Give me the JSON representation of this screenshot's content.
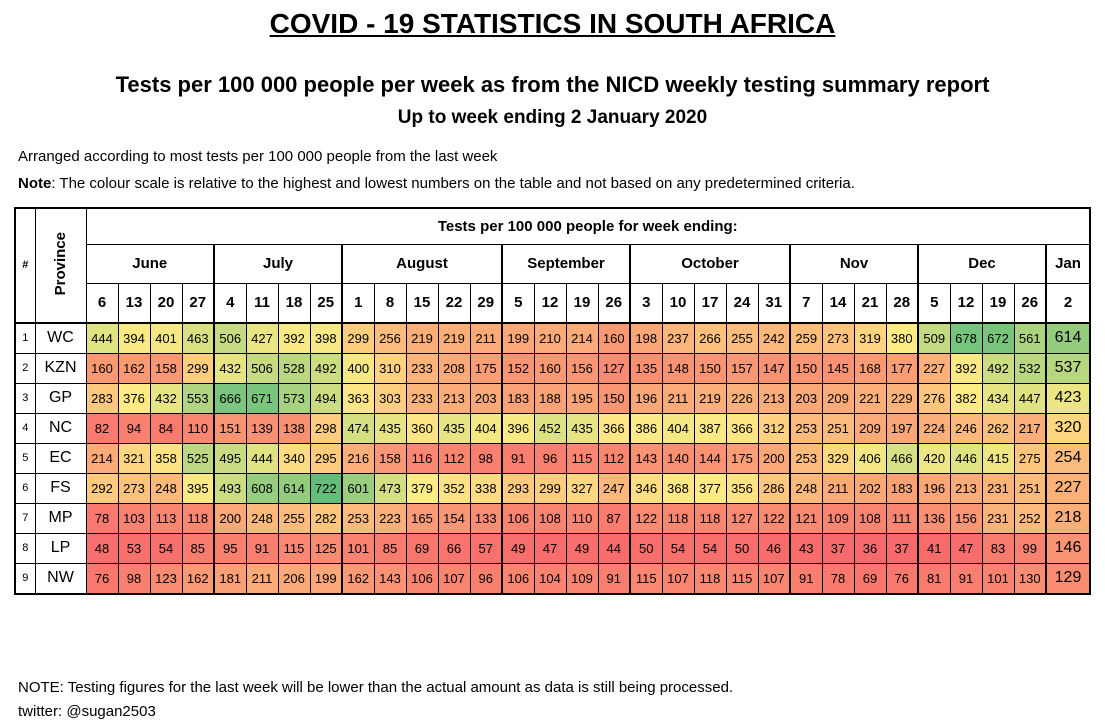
{
  "title": "COVID - 19 STATISTICS IN SOUTH AFRICA",
  "subtitle": "Tests per 100 000 people per week as from the NICD weekly testing summary report",
  "subtitle2": "Up to week ending 2 January 2020",
  "note_arranged": "Arranged according to most tests per 100 000 people from the last week",
  "note_label": "Note",
  "note_text": ": The colour scale is relative to the highest and lowest numbers on the table and not based on any predetermined criteria.",
  "footer_note": "NOTE: Testing figures for the last week will be lower than the actual amount as data is still being processed.",
  "footer_twitter": "twitter: @sugan2503",
  "table_header": {
    "index": "#",
    "province": "Province",
    "main": "Tests per 100 000 people for week ending:"
  },
  "color_scale": {
    "low": "#f8696b",
    "mid": "#ffeb84",
    "high": "#63be7b",
    "min": 36,
    "max": 722
  },
  "chart_data": {
    "type": "heatmap",
    "months": [
      {
        "name": "June",
        "days": [
          "6",
          "13",
          "20",
          "27"
        ]
      },
      {
        "name": "July",
        "days": [
          "4",
          "11",
          "18",
          "25"
        ]
      },
      {
        "name": "August",
        "days": [
          "1",
          "8",
          "15",
          "22",
          "29"
        ]
      },
      {
        "name": "September",
        "days": [
          "5",
          "12",
          "19",
          "26"
        ]
      },
      {
        "name": "October",
        "days": [
          "3",
          "10",
          "17",
          "24",
          "31"
        ]
      },
      {
        "name": "Nov",
        "days": [
          "7",
          "14",
          "21",
          "28"
        ]
      },
      {
        "name": "Dec",
        "days": [
          "5",
          "12",
          "19",
          "26"
        ]
      },
      {
        "name": "Jan",
        "days": [
          "2"
        ]
      }
    ],
    "rows": [
      {
        "index": "1",
        "province": "WC",
        "values": [
          444,
          394,
          401,
          463,
          506,
          427,
          392,
          398,
          299,
          256,
          219,
          219,
          211,
          199,
          210,
          214,
          160,
          198,
          237,
          266,
          255,
          242,
          259,
          273,
          319,
          380,
          509,
          678,
          672,
          561,
          614
        ]
      },
      {
        "index": "2",
        "province": "KZN",
        "values": [
          160,
          162,
          158,
          299,
          432,
          506,
          528,
          492,
          400,
          310,
          233,
          208,
          175,
          152,
          160,
          156,
          127,
          135,
          148,
          150,
          157,
          147,
          150,
          145,
          168,
          177,
          227,
          392,
          492,
          532,
          537
        ]
      },
      {
        "index": "3",
        "province": "GP",
        "values": [
          283,
          376,
          432,
          553,
          666,
          671,
          573,
          494,
          363,
          303,
          233,
          213,
          203,
          183,
          188,
          195,
          150,
          196,
          211,
          219,
          226,
          213,
          203,
          209,
          221,
          229,
          276,
          382,
          434,
          447,
          423
        ]
      },
      {
        "index": "4",
        "province": "NC",
        "values": [
          82,
          94,
          84,
          110,
          151,
          139,
          138,
          298,
          474,
          435,
          360,
          435,
          404,
          396,
          452,
          435,
          366,
          386,
          404,
          387,
          366,
          312,
          253,
          251,
          209,
          197,
          224,
          246,
          262,
          217,
          320
        ]
      },
      {
        "index": "5",
        "province": "EC",
        "values": [
          214,
          321,
          358,
          525,
          495,
          444,
          340,
          295,
          216,
          158,
          116,
          112,
          98,
          91,
          96,
          115,
          112,
          143,
          140,
          144,
          175,
          200,
          253,
          329,
          406,
          466,
          420,
          446,
          415,
          275,
          254
        ]
      },
      {
        "index": "6",
        "province": "FS",
        "values": [
          292,
          273,
          248,
          395,
          493,
          608,
          614,
          722,
          601,
          473,
          379,
          352,
          338,
          293,
          299,
          327,
          247,
          346,
          368,
          377,
          356,
          286,
          248,
          211,
          202,
          183,
          196,
          213,
          231,
          251,
          227
        ]
      },
      {
        "index": "7",
        "province": "MP",
        "values": [
          78,
          103,
          113,
          118,
          200,
          248,
          255,
          282,
          253,
          223,
          165,
          154,
          133,
          106,
          108,
          110,
          87,
          122,
          118,
          118,
          127,
          122,
          121,
          109,
          108,
          111,
          136,
          156,
          231,
          252,
          218
        ]
      },
      {
        "index": "8",
        "province": "LP",
        "values": [
          48,
          53,
          54,
          85,
          95,
          91,
          115,
          125,
          101,
          85,
          69,
          66,
          57,
          49,
          47,
          49,
          44,
          50,
          54,
          54,
          50,
          46,
          43,
          37,
          36,
          37,
          41,
          47,
          83,
          99,
          146
        ]
      },
      {
        "index": "9",
        "province": "NW",
        "values": [
          76,
          98,
          123,
          162,
          181,
          211,
          206,
          199,
          162,
          143,
          106,
          107,
          96,
          106,
          104,
          109,
          91,
          115,
          107,
          118,
          115,
          107,
          91,
          78,
          69,
          76,
          81,
          91,
          101,
          130,
          129
        ]
      }
    ]
  }
}
